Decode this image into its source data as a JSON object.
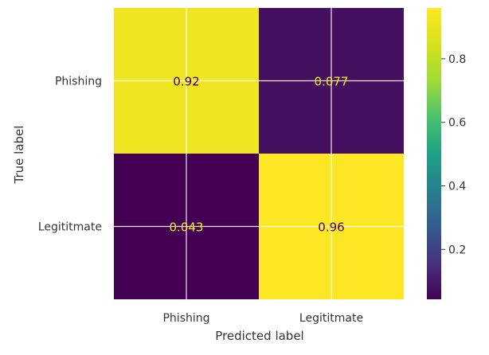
{
  "chart_data": {
    "type": "heatmap",
    "xlabel": "Predicted label",
    "ylabel": "True label",
    "x_categories": [
      "Phishing",
      "Legititmate"
    ],
    "y_categories": [
      "Phishing",
      "Legititmate"
    ],
    "values": [
      [
        0.92,
        0.077
      ],
      [
        0.043,
        0.96
      ]
    ],
    "cell_labels": [
      [
        "0.92",
        "0.077"
      ],
      [
        "0.043",
        "0.96"
      ]
    ],
    "colormap": "viridis",
    "colorbar": {
      "range": [
        0.043,
        0.96
      ],
      "ticks": [
        0.2,
        0.4,
        0.6,
        0.8
      ],
      "tick_labels": [
        "0.2",
        "0.4",
        "0.6",
        "0.8"
      ]
    },
    "grid": true,
    "colors": {
      "low": "#440154",
      "high": "#fde725",
      "text_on_dark": "#fde725",
      "text_on_light": "#440154",
      "grid": "#ffffff",
      "axis_text": "#333333"
    }
  }
}
